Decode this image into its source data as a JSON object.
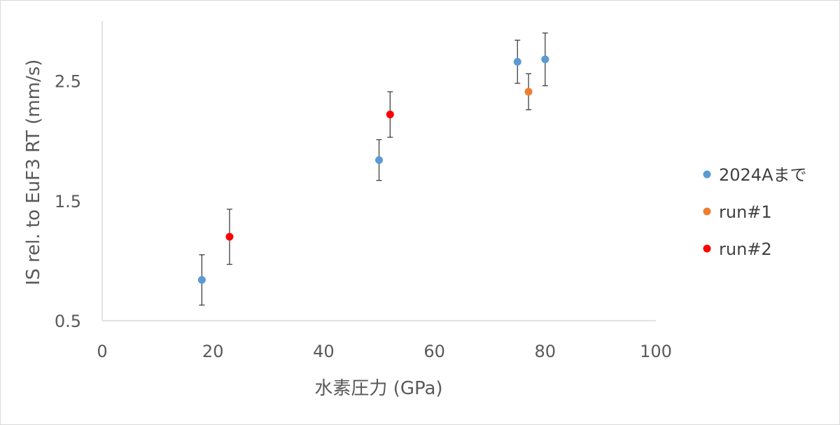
{
  "chart_data": {
    "type": "scatter",
    "title": "",
    "xlabel": "水素圧力 (GPa)",
    "ylabel": "IS rel. to EuF3 RT (mm/s)",
    "xlim": [
      0,
      100
    ],
    "ylim": [
      0.5,
      3.0
    ],
    "x_ticks": [
      0,
      20,
      40,
      60,
      80,
      100
    ],
    "y_ticks": [
      0.5,
      1.5,
      2.5
    ],
    "y_tick_labels": [
      "0.5",
      "1.5",
      "2.5"
    ],
    "grid": false,
    "legend_position": "right",
    "series": [
      {
        "name": "2024Aまで",
        "color": "#5b9bd5",
        "points": [
          {
            "x": 18,
            "y": 0.84,
            "err": 0.21
          },
          {
            "x": 50,
            "y": 1.84,
            "err": 0.17
          },
          {
            "x": 75,
            "y": 2.66,
            "err": 0.18
          },
          {
            "x": 80,
            "y": 2.68,
            "err": 0.22
          }
        ]
      },
      {
        "name": "run#1",
        "color": "#ed7d31",
        "points": [
          {
            "x": 77,
            "y": 2.41,
            "err": 0.15
          }
        ]
      },
      {
        "name": "run#2",
        "color": "#ff0000",
        "points": [
          {
            "x": 23,
            "y": 1.2,
            "err": 0.23
          },
          {
            "x": 52,
            "y": 2.22,
            "err": 0.19
          }
        ]
      }
    ]
  }
}
